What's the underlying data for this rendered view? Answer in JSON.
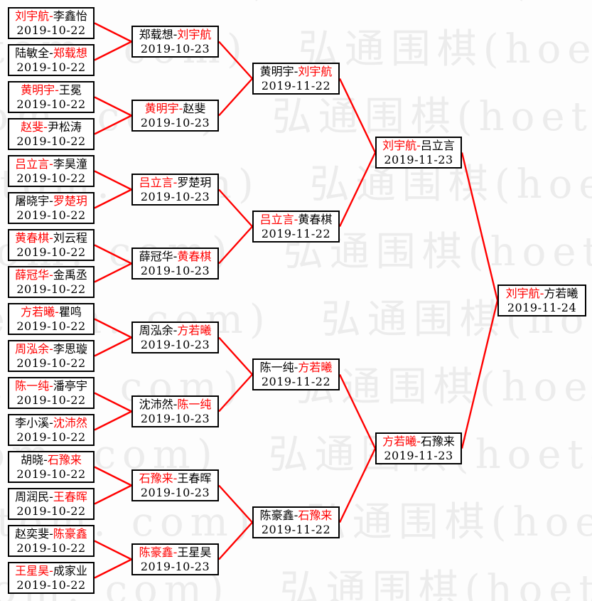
{
  "separator": "-",
  "watermark": {
    "text": "弘通围棋(hoetom. com)",
    "color": "#ececec"
  },
  "colors": {
    "winner": "#ff0000",
    "line": "#ff0000",
    "border": "#000000",
    "text": "#000000"
  },
  "rounds": [
    {
      "matches": [
        {
          "left": "刘宇航",
          "right": "李鑫怡",
          "winner": "left",
          "date": "2019-10-22"
        },
        {
          "left": "陆敏全",
          "right": "郑载想",
          "winner": "right",
          "date": "2019-10-22"
        },
        {
          "left": "黄明宇",
          "right": "王冕",
          "winner": "left",
          "date": "2019-10-22"
        },
        {
          "left": "赵斐",
          "right": "尹松涛",
          "winner": "left",
          "date": "2019-10-22"
        },
        {
          "left": "吕立言",
          "right": "李昊潼",
          "winner": "left",
          "date": "2019-10-22"
        },
        {
          "left": "屠晓宇",
          "right": "罗楚玥",
          "winner": "right",
          "date": "2019-10-22"
        },
        {
          "left": "黄春棋",
          "right": "刘云程",
          "winner": "left",
          "date": "2019-10-22"
        },
        {
          "left": "薛冠华",
          "right": "金禹丞",
          "winner": "left",
          "date": "2019-10-22"
        },
        {
          "left": "方若曦",
          "right": "瞿鸣",
          "winner": "left",
          "date": "2019-10-22"
        },
        {
          "left": "周泓余",
          "right": "李思璇",
          "winner": "left",
          "date": "2019-10-22"
        },
        {
          "left": "陈一纯",
          "right": "潘亭宇",
          "winner": "left",
          "date": "2019-10-22"
        },
        {
          "left": "李小溪",
          "right": "沈沛然",
          "winner": "right",
          "date": "2019-10-22"
        },
        {
          "left": "胡晓",
          "right": "石豫来",
          "winner": "right",
          "date": "2019-10-22"
        },
        {
          "left": "周润民",
          "right": "王春晖",
          "winner": "right",
          "date": "2019-10-22"
        },
        {
          "left": "赵奕斐",
          "right": "陈豪鑫",
          "winner": "right",
          "date": "2019-10-22"
        },
        {
          "left": "王星昊",
          "right": "成家业",
          "winner": "left",
          "date": "2019-10-22"
        }
      ]
    },
    {
      "matches": [
        {
          "left": "郑载想",
          "right": "刘宇航",
          "winner": "right",
          "date": "2019-10-23"
        },
        {
          "left": "黄明宇",
          "right": "赵斐",
          "winner": "left",
          "date": "2019-10-23"
        },
        {
          "left": "吕立言",
          "right": "罗楚玥",
          "winner": "left",
          "date": "2019-10-23"
        },
        {
          "left": "薛冠华",
          "right": "黄春棋",
          "winner": "right",
          "date": "2019-10-23"
        },
        {
          "left": "周泓余",
          "right": "方若曦",
          "winner": "right",
          "date": "2019-10-23"
        },
        {
          "left": "沈沛然",
          "right": "陈一纯",
          "winner": "right",
          "date": "2019-10-23"
        },
        {
          "left": "石豫来",
          "right": "王春晖",
          "winner": "left",
          "date": "2019-10-23"
        },
        {
          "left": "陈豪鑫",
          "right": "王星昊",
          "winner": "left",
          "date": "2019-10-23"
        }
      ]
    },
    {
      "matches": [
        {
          "left": "黄明宇",
          "right": "刘宇航",
          "winner": "right",
          "date": "2019-11-22"
        },
        {
          "left": "吕立言",
          "right": "黄春棋",
          "winner": "left",
          "date": "2019-11-22"
        },
        {
          "left": "陈一纯",
          "right": "方若曦",
          "winner": "right",
          "date": "2019-11-22"
        },
        {
          "left": "陈豪鑫",
          "right": "石豫来",
          "winner": "right",
          "date": "2019-11-22"
        }
      ]
    },
    {
      "matches": [
        {
          "left": "刘宇航",
          "right": "吕立言",
          "winner": "left",
          "date": "2019-11-23"
        },
        {
          "left": "方若曦",
          "right": "石豫来",
          "winner": "left",
          "date": "2019-11-23"
        }
      ]
    },
    {
      "matches": [
        {
          "left": "刘宇航",
          "right": "方若曦",
          "winner": "left",
          "date": "2019-11-24"
        }
      ]
    }
  ]
}
